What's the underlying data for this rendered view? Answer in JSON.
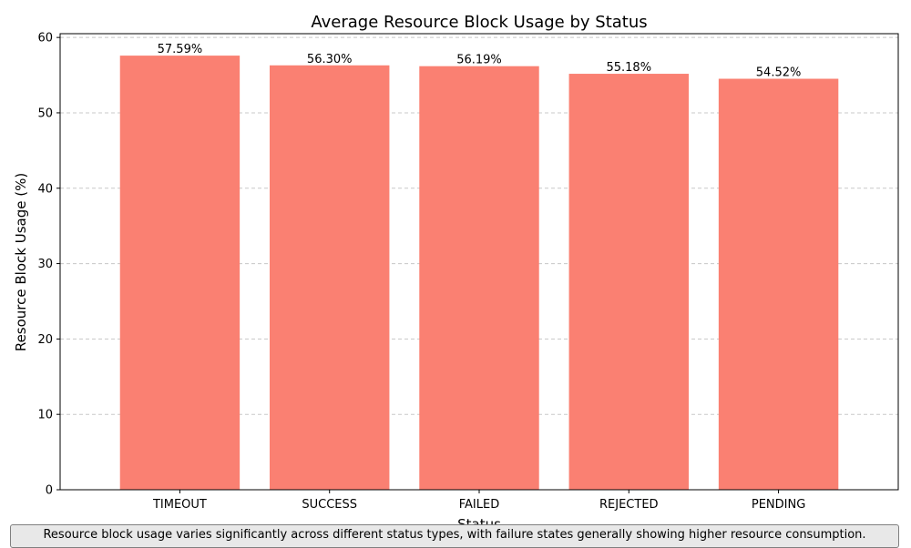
{
  "chart_data": {
    "type": "bar",
    "title": "Average Resource Block Usage by Status",
    "xlabel": "Status",
    "ylabel": "Resource Block Usage (%)",
    "categories": [
      "TIMEOUT",
      "SUCCESS",
      "FAILED",
      "REJECTED",
      "PENDING"
    ],
    "values": [
      57.59,
      56.3,
      56.19,
      55.18,
      54.52
    ],
    "data_labels": [
      "57.59%",
      "56.30%",
      "56.19%",
      "55.18%",
      "54.52%"
    ],
    "ylim": [
      0,
      60.5
    ],
    "yticks": [
      0,
      10,
      20,
      30,
      40,
      50,
      60
    ],
    "grid": "y-dashed",
    "bar_color": "#fa8072"
  },
  "caption": "Resource block usage varies significantly across different status types, with failure states generally showing higher resource consumption."
}
